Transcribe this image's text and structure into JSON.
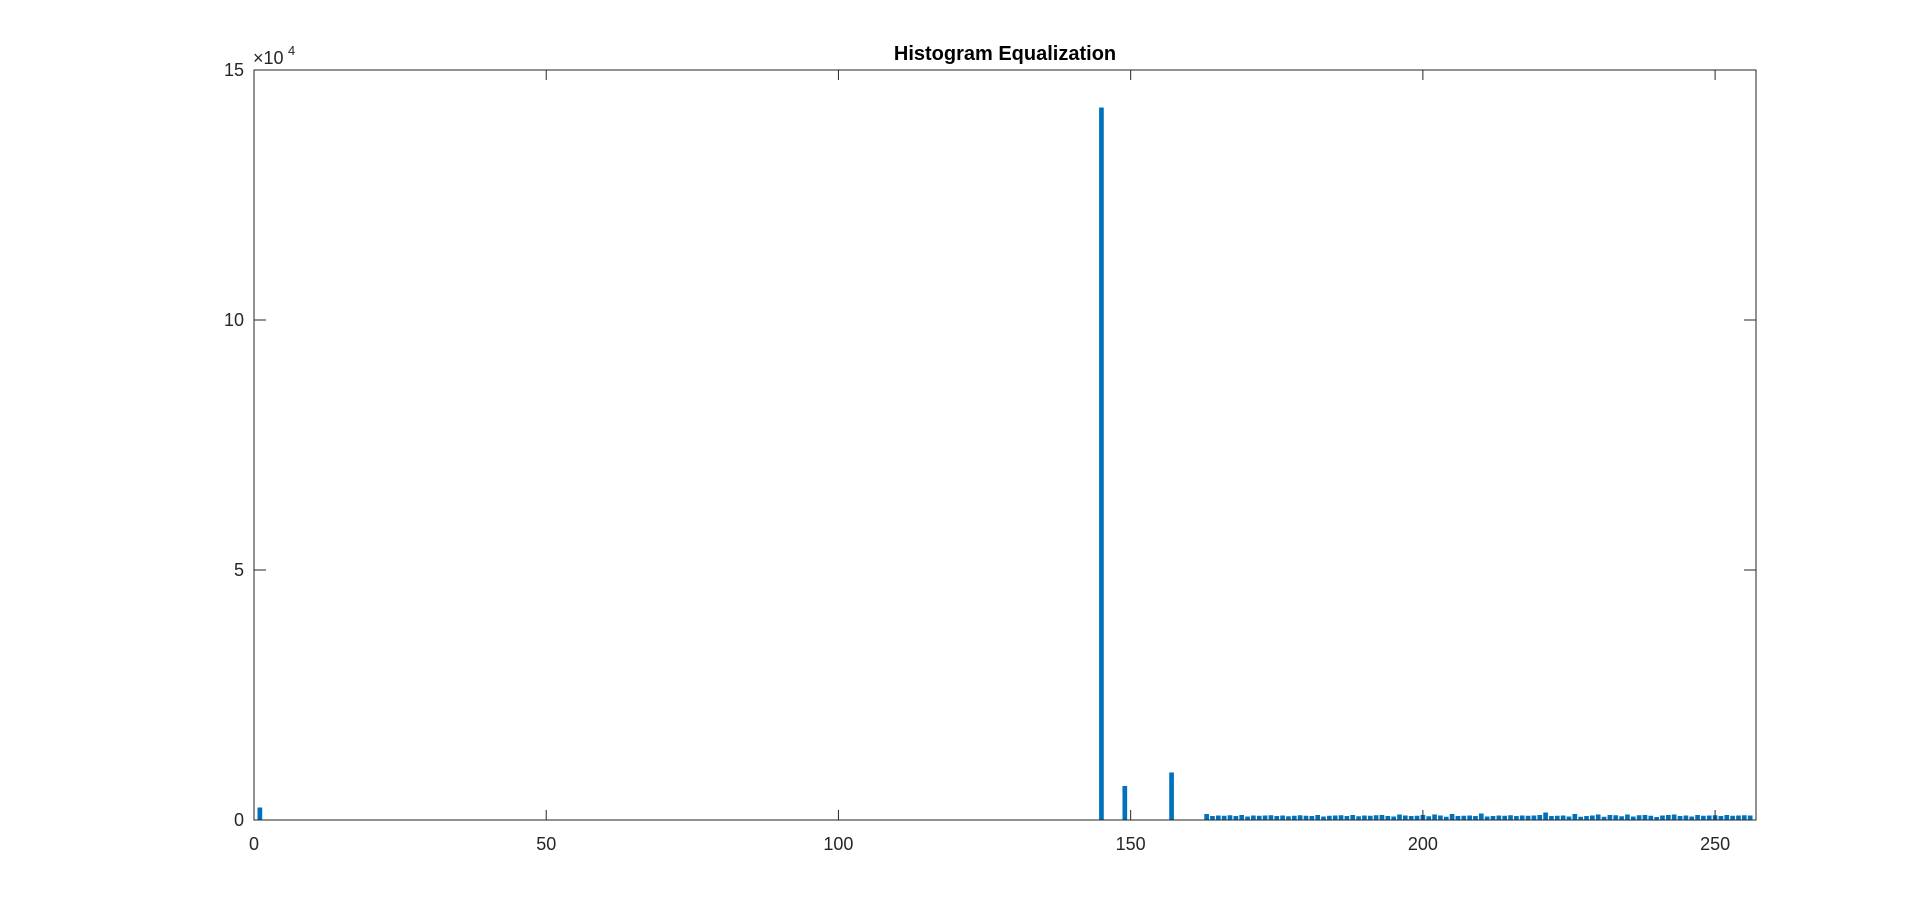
{
  "chart_data": {
    "type": "bar",
    "title": "Histogram Equalization",
    "xlabel": "",
    "ylabel": "",
    "xlim": [
      0,
      257
    ],
    "ylim": [
      0,
      150000
    ],
    "xticks": [
      0,
      50,
      100,
      150,
      200,
      250
    ],
    "xtick_labels": [
      "0",
      "50",
      "100",
      "150",
      "200",
      "250"
    ],
    "yticks": [
      0,
      50000,
      100000,
      150000
    ],
    "ytick_labels": [
      "0",
      "5",
      "10",
      "15"
    ],
    "y_exponent_label": "×10",
    "y_exponent_power": "4",
    "grid": false,
    "bar_color": "#0072BD",
    "x": [
      1,
      145,
      149,
      157,
      163,
      164,
      165,
      166,
      167,
      168,
      169,
      170,
      171,
      172,
      173,
      174,
      175,
      176,
      177,
      178,
      179,
      180,
      181,
      182,
      183,
      184,
      185,
      186,
      187,
      188,
      189,
      190,
      191,
      192,
      193,
      194,
      195,
      196,
      197,
      198,
      199,
      200,
      201,
      202,
      203,
      204,
      205,
      206,
      207,
      208,
      209,
      210,
      211,
      212,
      213,
      214,
      215,
      216,
      217,
      218,
      219,
      220,
      221,
      222,
      223,
      224,
      225,
      226,
      227,
      228,
      229,
      230,
      231,
      232,
      233,
      234,
      235,
      236,
      237,
      238,
      239,
      240,
      241,
      242,
      243,
      244,
      245,
      246,
      247,
      248,
      249,
      250,
      251,
      252,
      253,
      254,
      255,
      256
    ],
    "values": [
      2500,
      142500,
      6800,
      9500,
      1200,
      800,
      900,
      850,
      950,
      800,
      1000,
      700,
      900,
      850,
      900,
      950,
      800,
      900,
      750,
      850,
      950,
      850,
      800,
      1000,
      700,
      850,
      900,
      950,
      800,
      1000,
      750,
      900,
      850,
      950,
      1000,
      800,
      700,
      1100,
      900,
      800,
      850,
      1000,
      750,
      1100,
      900,
      650,
      1200,
      800,
      850,
      900,
      800,
      1300,
      700,
      800,
      900,
      850,
      950,
      800,
      900,
      850,
      900,
      1000,
      1500,
      800,
      850,
      900,
      700,
      1200,
      650,
      800,
      900,
      1100,
      650,
      1000,
      950,
      750,
      1100,
      700,
      950,
      1000,
      850,
      600,
      900,
      1000,
      1100,
      800,
      900,
      700,
      1000,
      850,
      900,
      950,
      800,
      1000,
      850,
      900,
      950,
      900
    ]
  }
}
